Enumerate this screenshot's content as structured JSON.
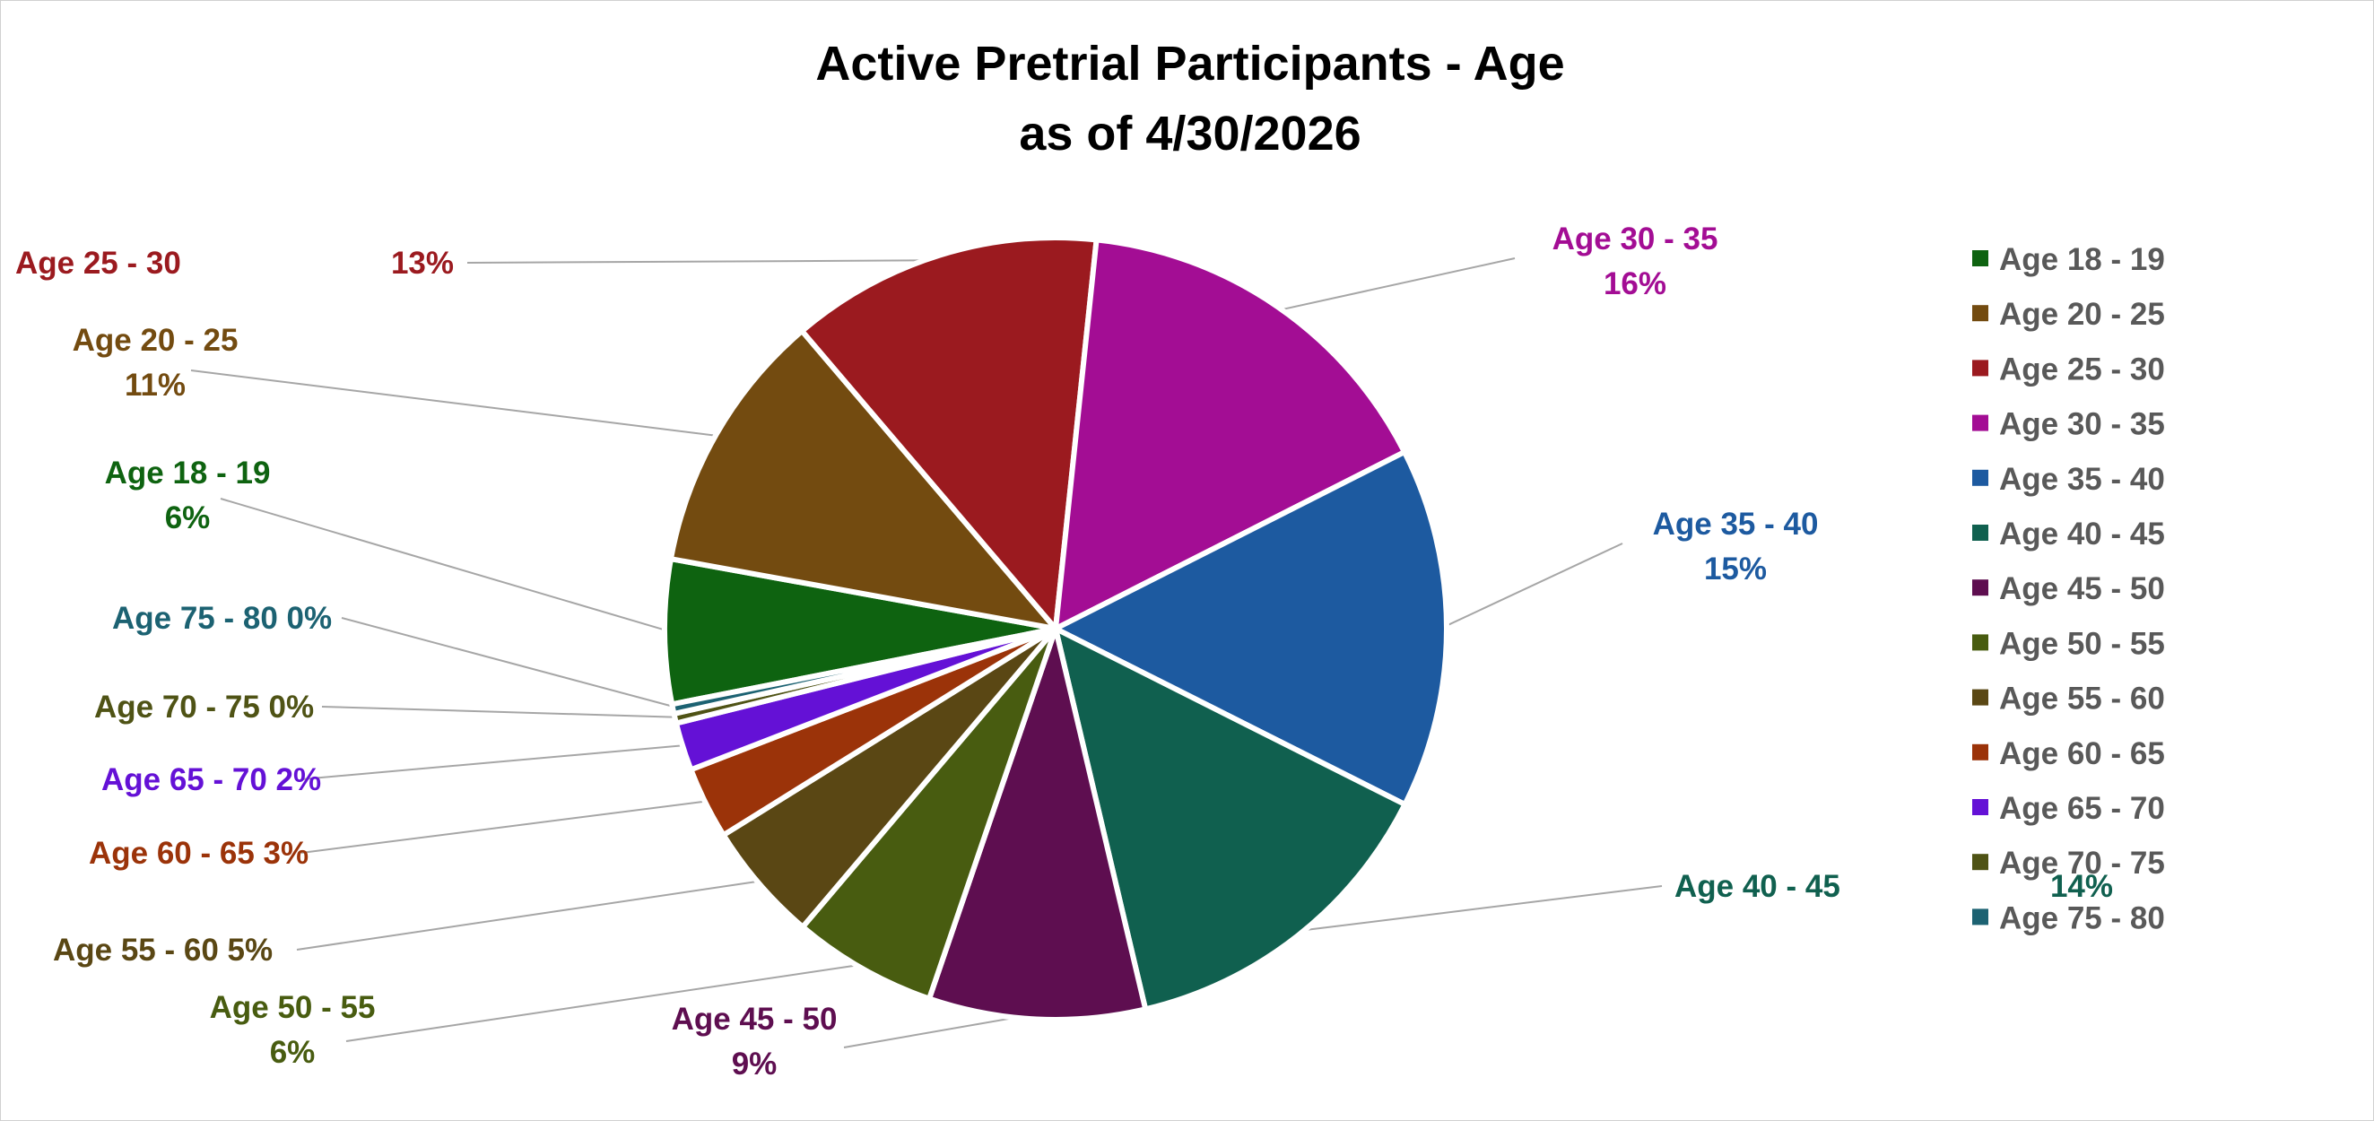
{
  "chart_data": {
    "type": "pie",
    "title_line1": "Active Pretrial Participants - Age",
    "title_line2": "as of 4/30/2026",
    "legend_position": "right",
    "slices": [
      {
        "label": "Age 18 - 19",
        "value": 6,
        "pct_label": "6%",
        "color": "#0e6310"
      },
      {
        "label": "Age 20 - 25",
        "value": 11,
        "pct_label": "11%",
        "color": "#734b10"
      },
      {
        "label": "Age 25 - 30",
        "value": 13,
        "pct_label": "13%",
        "color": "#9b1a1f"
      },
      {
        "label": "Age 30 - 35",
        "value": 16,
        "pct_label": "16%",
        "color": "#a30d94"
      },
      {
        "label": "Age 35 - 40",
        "value": 15,
        "pct_label": "15%",
        "color": "#1d5aa0"
      },
      {
        "label": "Age 40 - 45",
        "value": 14,
        "pct_label": "14%",
        "color": "#10604f"
      },
      {
        "label": "Age 45 - 50",
        "value": 9,
        "pct_label": "9%",
        "color": "#5e0e50"
      },
      {
        "label": "Age 50 - 55",
        "value": 6,
        "pct_label": "6%",
        "color": "#485c10"
      },
      {
        "label": "Age 55 - 60",
        "value": 5,
        "pct_label": "5%",
        "color": "#5a4714"
      },
      {
        "label": "Age 60 - 65",
        "value": 3,
        "pct_label": "3%",
        "color": "#9b3309"
      },
      {
        "label": "Age 65 - 70",
        "value": 2,
        "pct_label": "2%",
        "color": "#6411d6"
      },
      {
        "label": "Age 70 - 75",
        "value": 0.4,
        "pct_label": "0%",
        "color": "#4f5315"
      },
      {
        "label": "Age 75 - 80",
        "value": 0.4,
        "pct_label": "0%",
        "color": "#1c6272"
      }
    ]
  }
}
